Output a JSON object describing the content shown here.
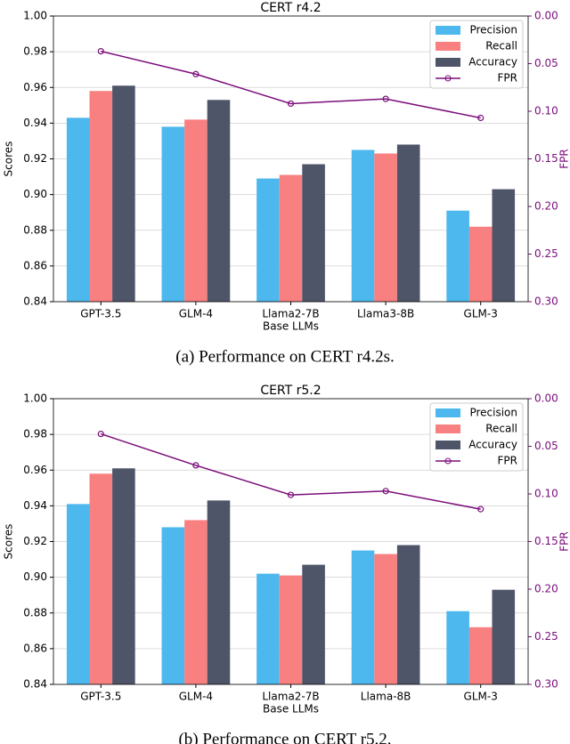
{
  "chart_data": [
    {
      "type": "bar",
      "title": "CERT r4.2",
      "xlabel": "Base LLMs",
      "ylabel": "Scores",
      "y2label": "FPR",
      "caption": "(a) Performance on CERT r4.2s.",
      "categories": [
        "GPT-3.5",
        "GLM-4",
        "Llama2-7B",
        "Llama3-8B",
        "GLM-3"
      ],
      "series": [
        {
          "name": "Precision",
          "color": "#4db8ee",
          "values": [
            0.943,
            0.938,
            0.909,
            0.925,
            0.891
          ]
        },
        {
          "name": "Recall",
          "color": "#f98080",
          "values": [
            0.958,
            0.942,
            0.911,
            0.923,
            0.882
          ]
        },
        {
          "name": "Accuracy",
          "color": "#4f5569",
          "values": [
            0.961,
            0.953,
            0.917,
            0.928,
            0.903
          ]
        },
        {
          "name": "FPR",
          "color": "#7b0e7b",
          "type": "line",
          "axis": "y2",
          "values": [
            0.037,
            0.061,
            0.092,
            0.087,
            0.107
          ]
        }
      ],
      "ylim": [
        0.84,
        1
      ],
      "yticks": [
        0.84,
        0.86,
        0.88,
        {
          "value": 0.9,
          "label": "0.90"
        },
        0.92,
        0.94,
        0.96,
        0.98,
        {
          "value": 1,
          "label": "1.00"
        }
      ],
      "y2lim": [
        0.3,
        0
      ],
      "y2ticks": [
        {
          "value": 0,
          "label": "0.00"
        },
        0.05,
        {
          "value": 0.1,
          "label": "0.10"
        },
        0.15,
        {
          "value": 0.2,
          "label": "0.20"
        },
        0.25,
        {
          "value": 0.3,
          "label": "0.30"
        }
      ],
      "grid": true,
      "legend": "upper right"
    },
    {
      "type": "bar",
      "title": "CERT r5.2",
      "xlabel": "Base LLMs",
      "ylabel": "Scores",
      "y2label": "FPR",
      "caption": "(b) Performance on CERT r5.2.",
      "categories": [
        "GPT-3.5",
        "GLM-4",
        "Llama2-7B",
        "Llama-8B",
        "GLM-3"
      ],
      "series": [
        {
          "name": "Precision",
          "color": "#4db8ee",
          "values": [
            0.941,
            0.928,
            0.902,
            0.915,
            0.881
          ]
        },
        {
          "name": "Recall",
          "color": "#f98080",
          "values": [
            0.958,
            0.932,
            0.901,
            0.913,
            0.872
          ]
        },
        {
          "name": "Accuracy",
          "color": "#4f5569",
          "values": [
            0.961,
            0.943,
            0.907,
            0.918,
            0.893
          ]
        },
        {
          "name": "FPR",
          "color": "#7b0e7b",
          "type": "line",
          "axis": "y2",
          "values": [
            0.037,
            0.07,
            0.101,
            0.097,
            0.116
          ]
        }
      ],
      "ylim": [
        0.84,
        1
      ],
      "yticks": [
        0.84,
        0.86,
        0.88,
        {
          "value": 0.9,
          "label": "0.90"
        },
        0.92,
        0.94,
        0.96,
        0.98,
        {
          "value": 1,
          "label": "1.00"
        }
      ],
      "y2lim": [
        0.3,
        0
      ],
      "y2ticks": [
        {
          "value": 0,
          "label": "0.00"
        },
        0.05,
        {
          "value": 0.1,
          "label": "0.10"
        },
        0.15,
        {
          "value": 0.2,
          "label": "0.20"
        },
        0.25,
        {
          "value": 0.3,
          "label": "0.30"
        }
      ],
      "grid": true,
      "legend": "upper right"
    }
  ]
}
